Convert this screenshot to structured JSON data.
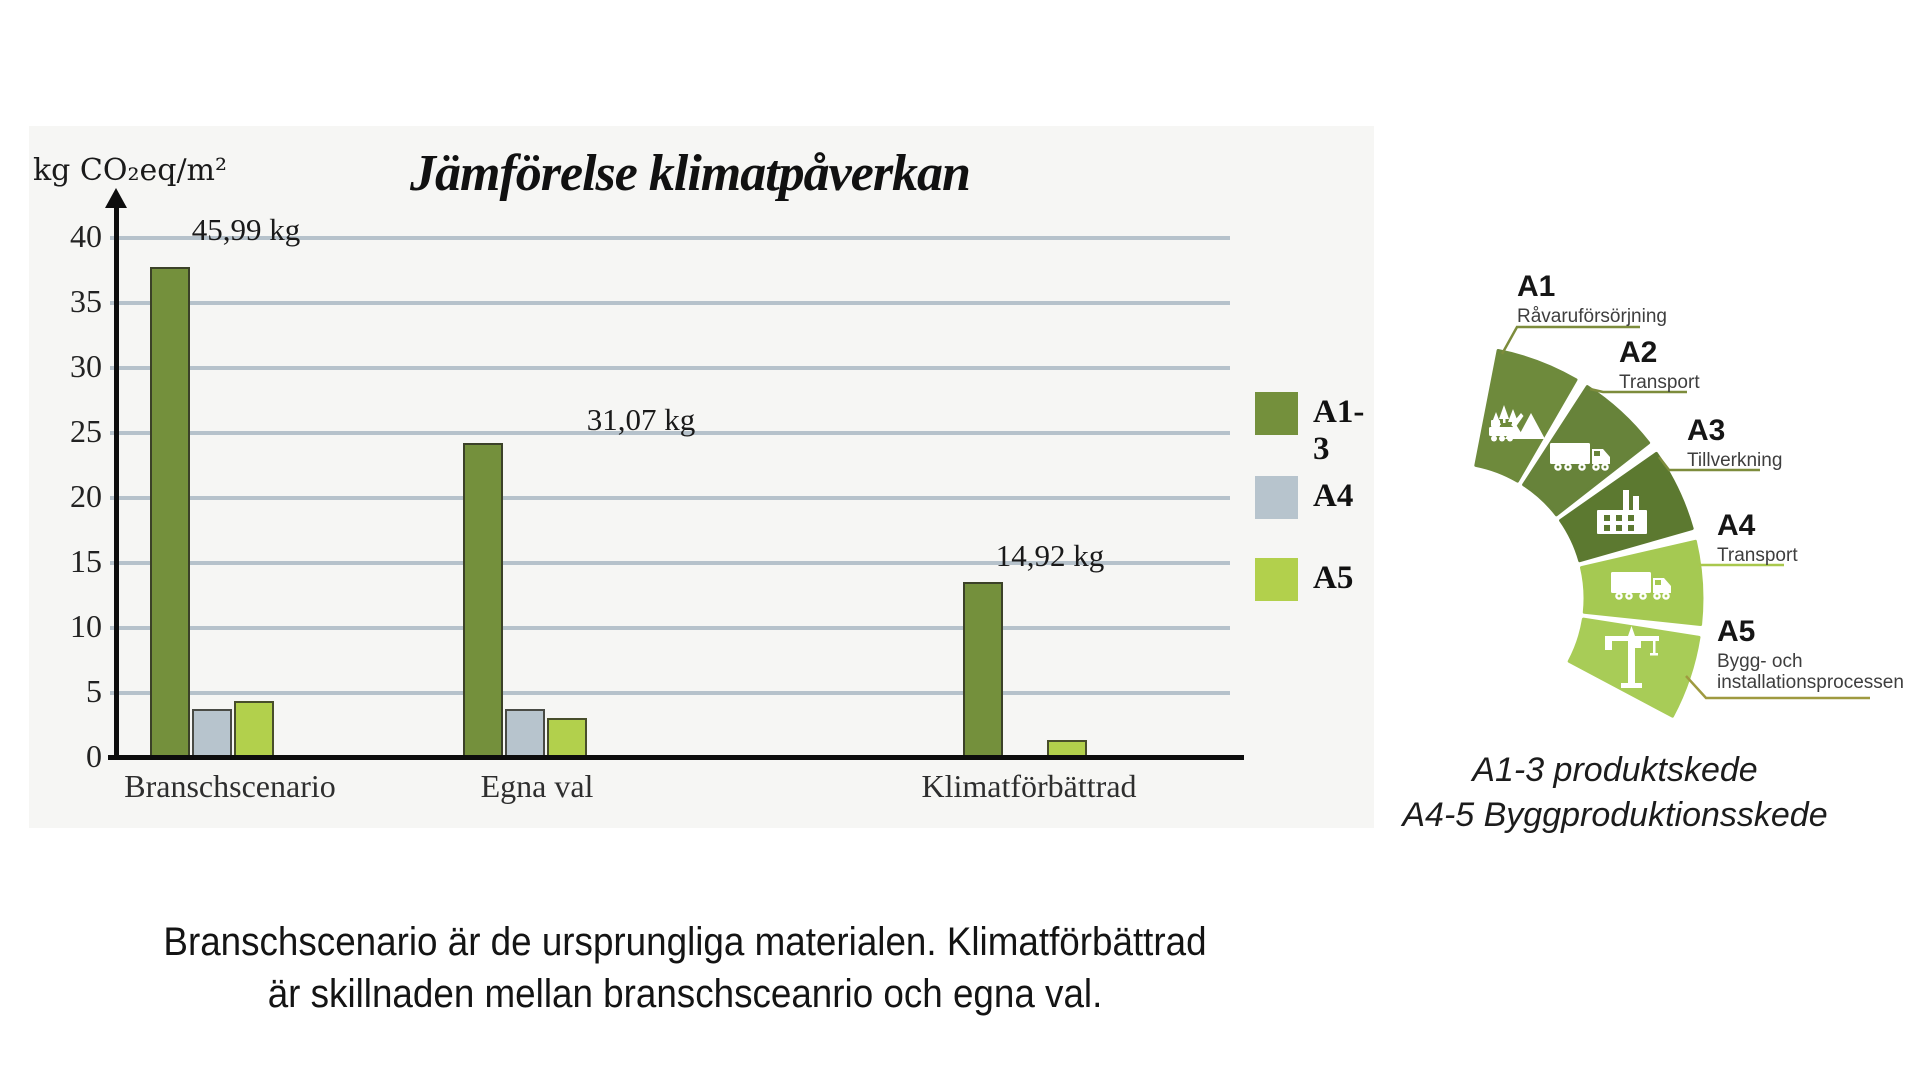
{
  "chart": {
    "unit_label": "kg CO₂eq/m²",
    "title": "Jämförelse klimatpåverkan",
    "panel_bg": "#f6f6f4"
  },
  "chart_data": {
    "type": "bar",
    "title": "Jämförelse klimatpåverkan",
    "ylabel": "kg CO₂eq/m²",
    "categories": [
      "Branschscenario",
      "Egna val",
      "Klimatförbättrad"
    ],
    "series": [
      {
        "name": "A1-3",
        "color": "#74903c",
        "values": [
          37.8,
          24.2,
          13.5
        ]
      },
      {
        "name": "A4",
        "color": "#b7c4cd",
        "values": [
          3.8,
          3.8,
          0
        ]
      },
      {
        "name": "A5",
        "color": "#b2d04c",
        "values": [
          4.4,
          3.1,
          1.4
        ]
      }
    ],
    "group_total_labels": [
      "45,99 kg",
      "31,07 kg",
      "14,92 kg"
    ],
    "yticks": [
      40,
      35,
      30,
      25,
      20,
      15,
      10,
      5,
      0
    ],
    "ylim": [
      0,
      42
    ],
    "grid": true,
    "gridline_color": "#b6c2cb",
    "legend_position": "right-inside",
    "legend": [
      "A1-3",
      "A4",
      "A5"
    ]
  },
  "lifecycle": {
    "stages": [
      {
        "code": "A1",
        "name": "Råvaruförsörjning",
        "color": "#6e8a3c",
        "icon": "forestry-harvester-icon"
      },
      {
        "code": "A2",
        "name": "Transport",
        "color": "#67833a",
        "icon": "truck-icon"
      },
      {
        "code": "A3",
        "name": "Tillverkning",
        "color": "#5c7930",
        "icon": "factory-icon"
      },
      {
        "code": "A4",
        "name": "Transport",
        "color": "#a5c952",
        "icon": "truck-icon"
      },
      {
        "code": "A5",
        "name": "Bygg- och\ninstallationsprocessen",
        "color": "#a8cc57",
        "icon": "tower-crane-icon"
      }
    ],
    "note_line1": "A1-3 produktskede",
    "note_line2": "A4-5 Byggproduktionsskede"
  },
  "caption": {
    "line1": "Branschscenario är de ursprungliga materialen. Klimatförbättrad",
    "line2": "är skillnaden mellan branschsceanrio och egna val."
  }
}
